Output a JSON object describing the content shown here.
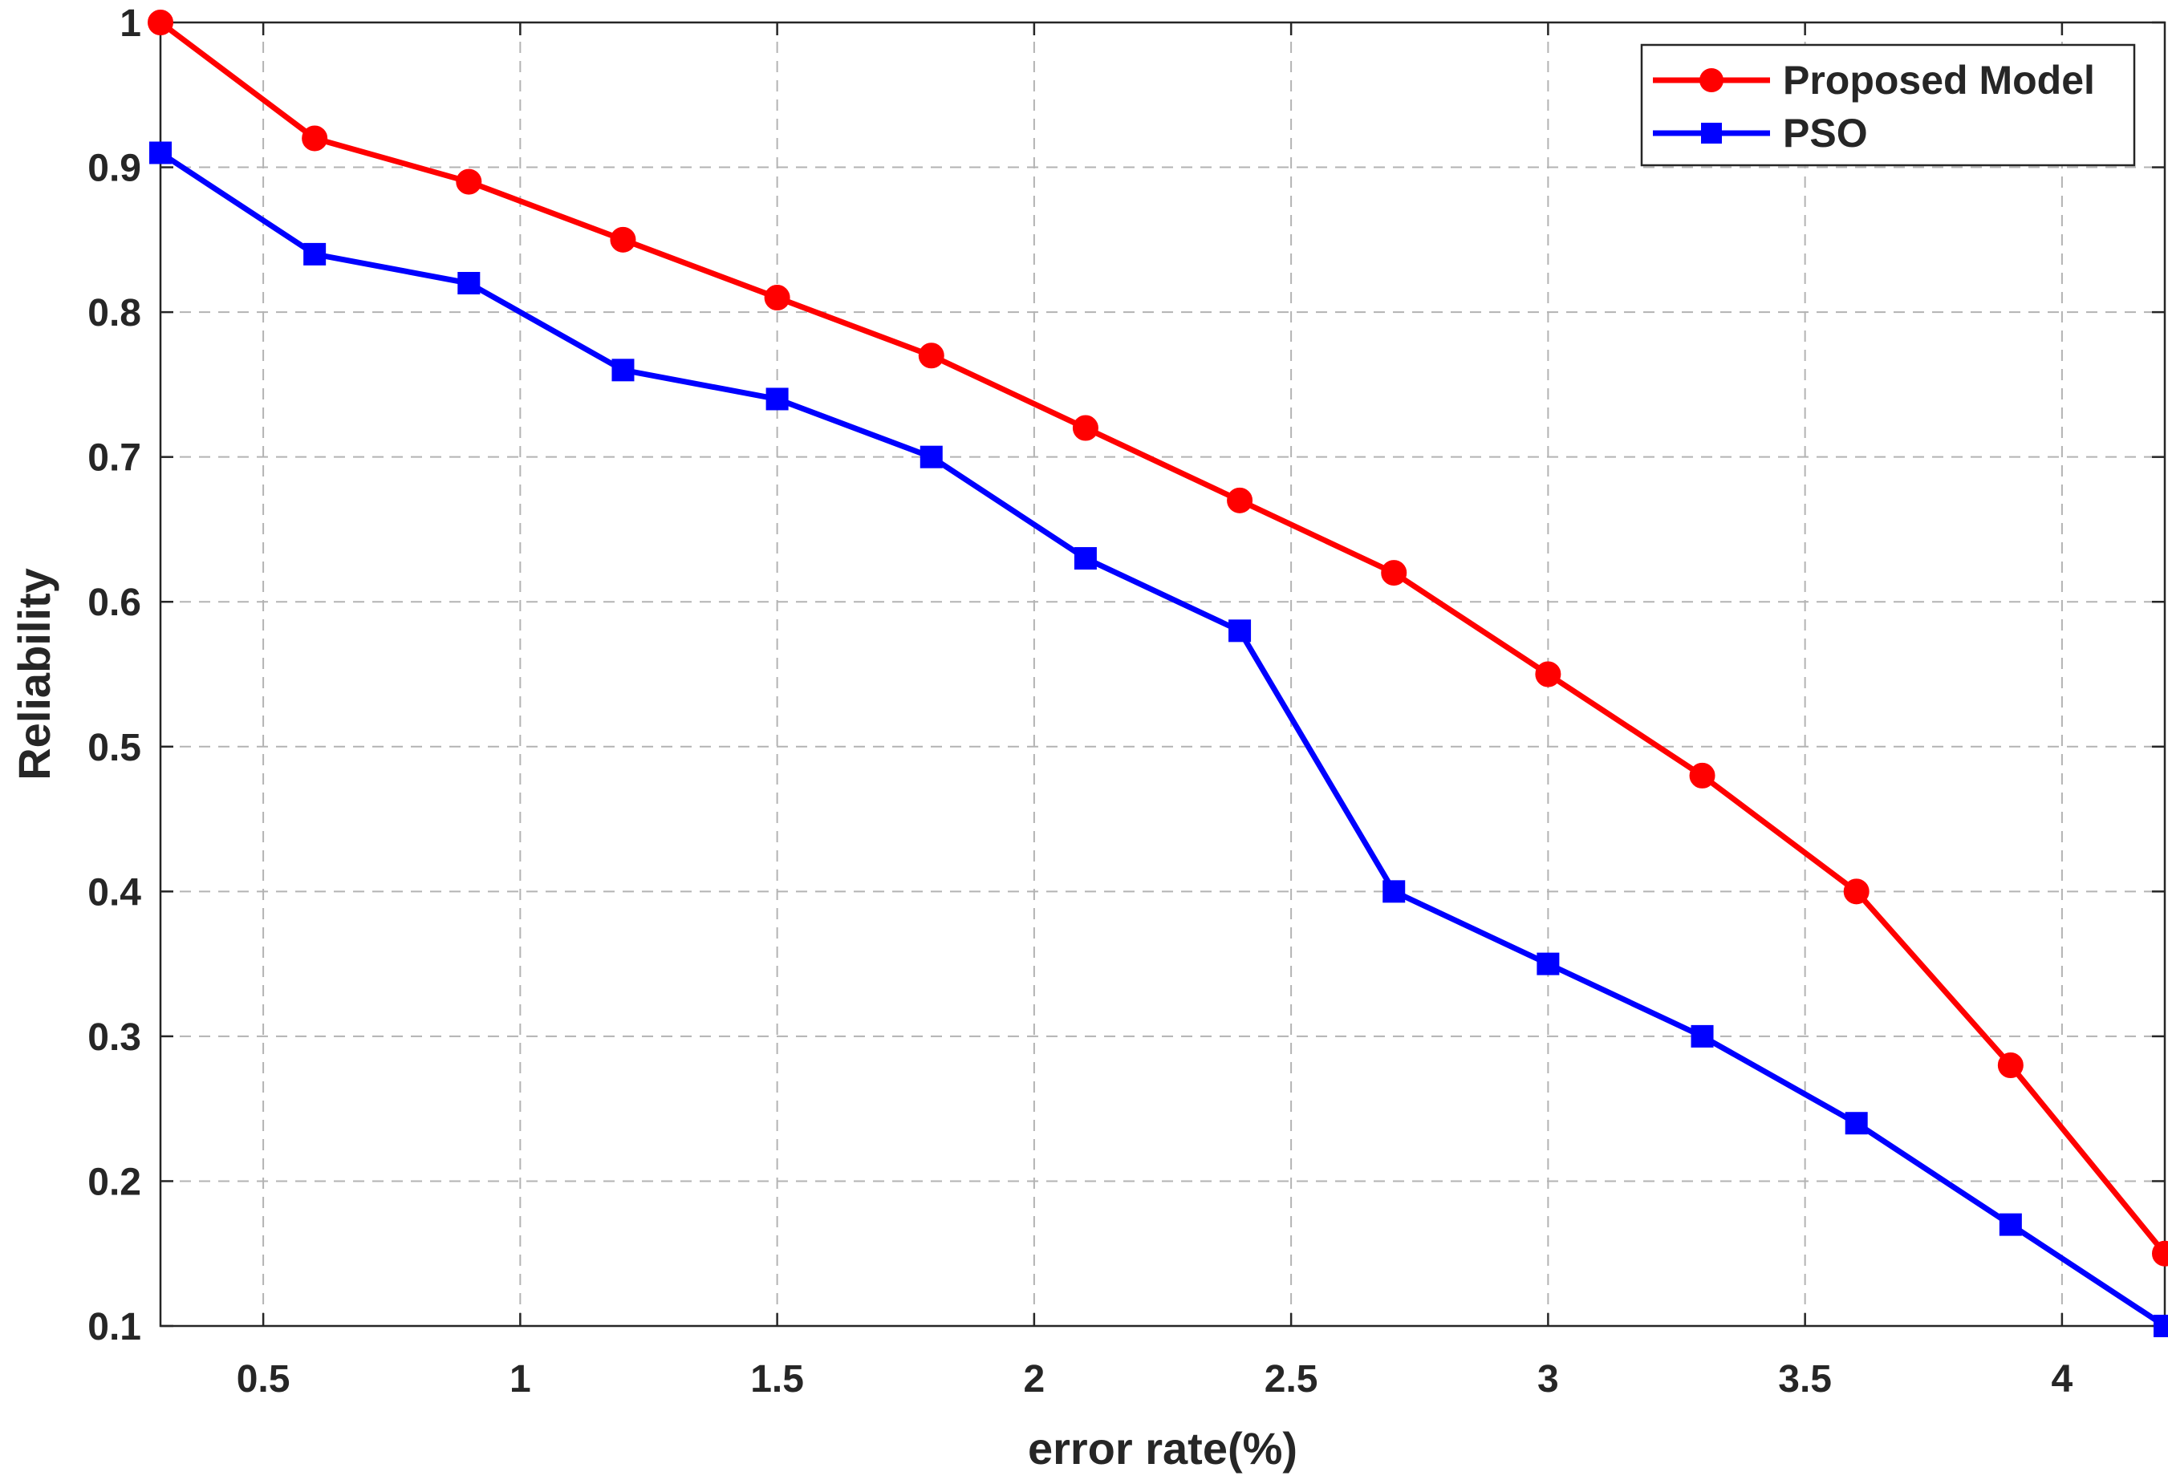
{
  "chart_data": {
    "type": "line",
    "title": "",
    "xlabel": "error rate(%)",
    "ylabel": "Reliability",
    "xlim": [
      0.3,
      4.2
    ],
    "ylim": [
      0.1,
      1.0
    ],
    "x_ticks": [
      0.5,
      1,
      1.5,
      2,
      2.5,
      3,
      3.5,
      4
    ],
    "x_tick_labels": [
      "0.5",
      "1",
      "1.5",
      "2",
      "2.5",
      "3",
      "3.5",
      "4"
    ],
    "y_ticks": [
      0.1,
      0.2,
      0.3,
      0.4,
      0.5,
      0.6,
      0.7,
      0.8,
      0.9,
      1.0
    ],
    "y_tick_labels": [
      "0.1",
      "0.2",
      "0.3",
      "0.4",
      "0.5",
      "0.6",
      "0.7",
      "0.8",
      "0.9",
      "1"
    ],
    "grid": true,
    "legend_position": "top-right",
    "x": [
      0.3,
      0.6,
      0.9,
      1.2,
      1.5,
      1.8,
      2.1,
      2.4,
      2.7,
      3.0,
      3.3,
      3.6,
      3.9,
      4.2
    ],
    "series": [
      {
        "name": "Proposed Model",
        "color": "#ff0000",
        "marker": "circle",
        "values": [
          1.0,
          0.92,
          0.89,
          0.85,
          0.81,
          0.77,
          0.72,
          0.67,
          0.62,
          0.55,
          0.48,
          0.4,
          0.28,
          0.15
        ]
      },
      {
        "name": "PSO",
        "color": "#0000ff",
        "marker": "square",
        "values": [
          0.91,
          0.84,
          0.82,
          0.76,
          0.74,
          0.7,
          0.63,
          0.58,
          0.4,
          0.35,
          0.3,
          0.24,
          0.17,
          0.1
        ]
      }
    ]
  }
}
